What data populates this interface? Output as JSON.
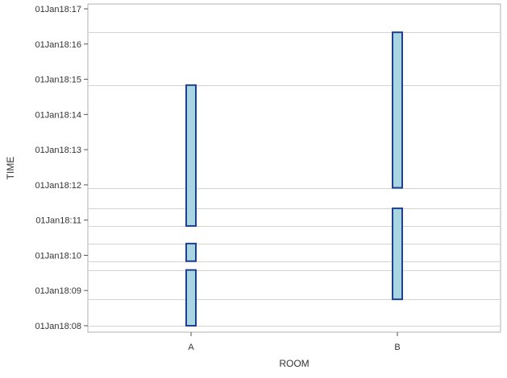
{
  "chart_data": {
    "type": "bar",
    "subtype": "floating-range",
    "xlabel": "ROOM",
    "ylabel": "TIME",
    "categories": [
      "A",
      "B"
    ],
    "y_ticks": [
      "01Jan18:08",
      "01Jan18:09",
      "01Jan18:10",
      "01Jan18:11",
      "01Jan18:12",
      "01Jan18:13",
      "01Jan18:14",
      "01Jan18:15",
      "01Jan18:16",
      "01Jan18:17"
    ],
    "ylim": [
      "01Jan18:08",
      "01Jan18:17"
    ],
    "bars": [
      {
        "category": "A",
        "start": "01Jan18:08:00",
        "end": "01Jan18:09:35"
      },
      {
        "category": "A",
        "start": "01Jan18:09:50",
        "end": "01Jan18:10:20"
      },
      {
        "category": "A",
        "start": "01Jan18:10:50",
        "end": "01Jan18:14:50"
      },
      {
        "category": "B",
        "start": "01Jan18:08:45",
        "end": "01Jan18:11:20"
      },
      {
        "category": "B",
        "start": "01Jan18:11:55",
        "end": "01Jan18:16:20"
      }
    ],
    "reference_lines": [
      "01Jan18:08:00",
      "01Jan18:08:45",
      "01Jan18:09:35",
      "01Jan18:09:50",
      "01Jan18:10:20",
      "01Jan18:10:50",
      "01Jan18:11:20",
      "01Jan18:11:55",
      "01Jan18:14:50",
      "01Jan18:16:20"
    ],
    "grid": "horizontal reference lines",
    "colors": {
      "bar_fill": "#a8d5e2",
      "bar_stroke": "#1f3f8f",
      "grid": "#d4d4d4",
      "frame": "#b0b0b0"
    }
  }
}
